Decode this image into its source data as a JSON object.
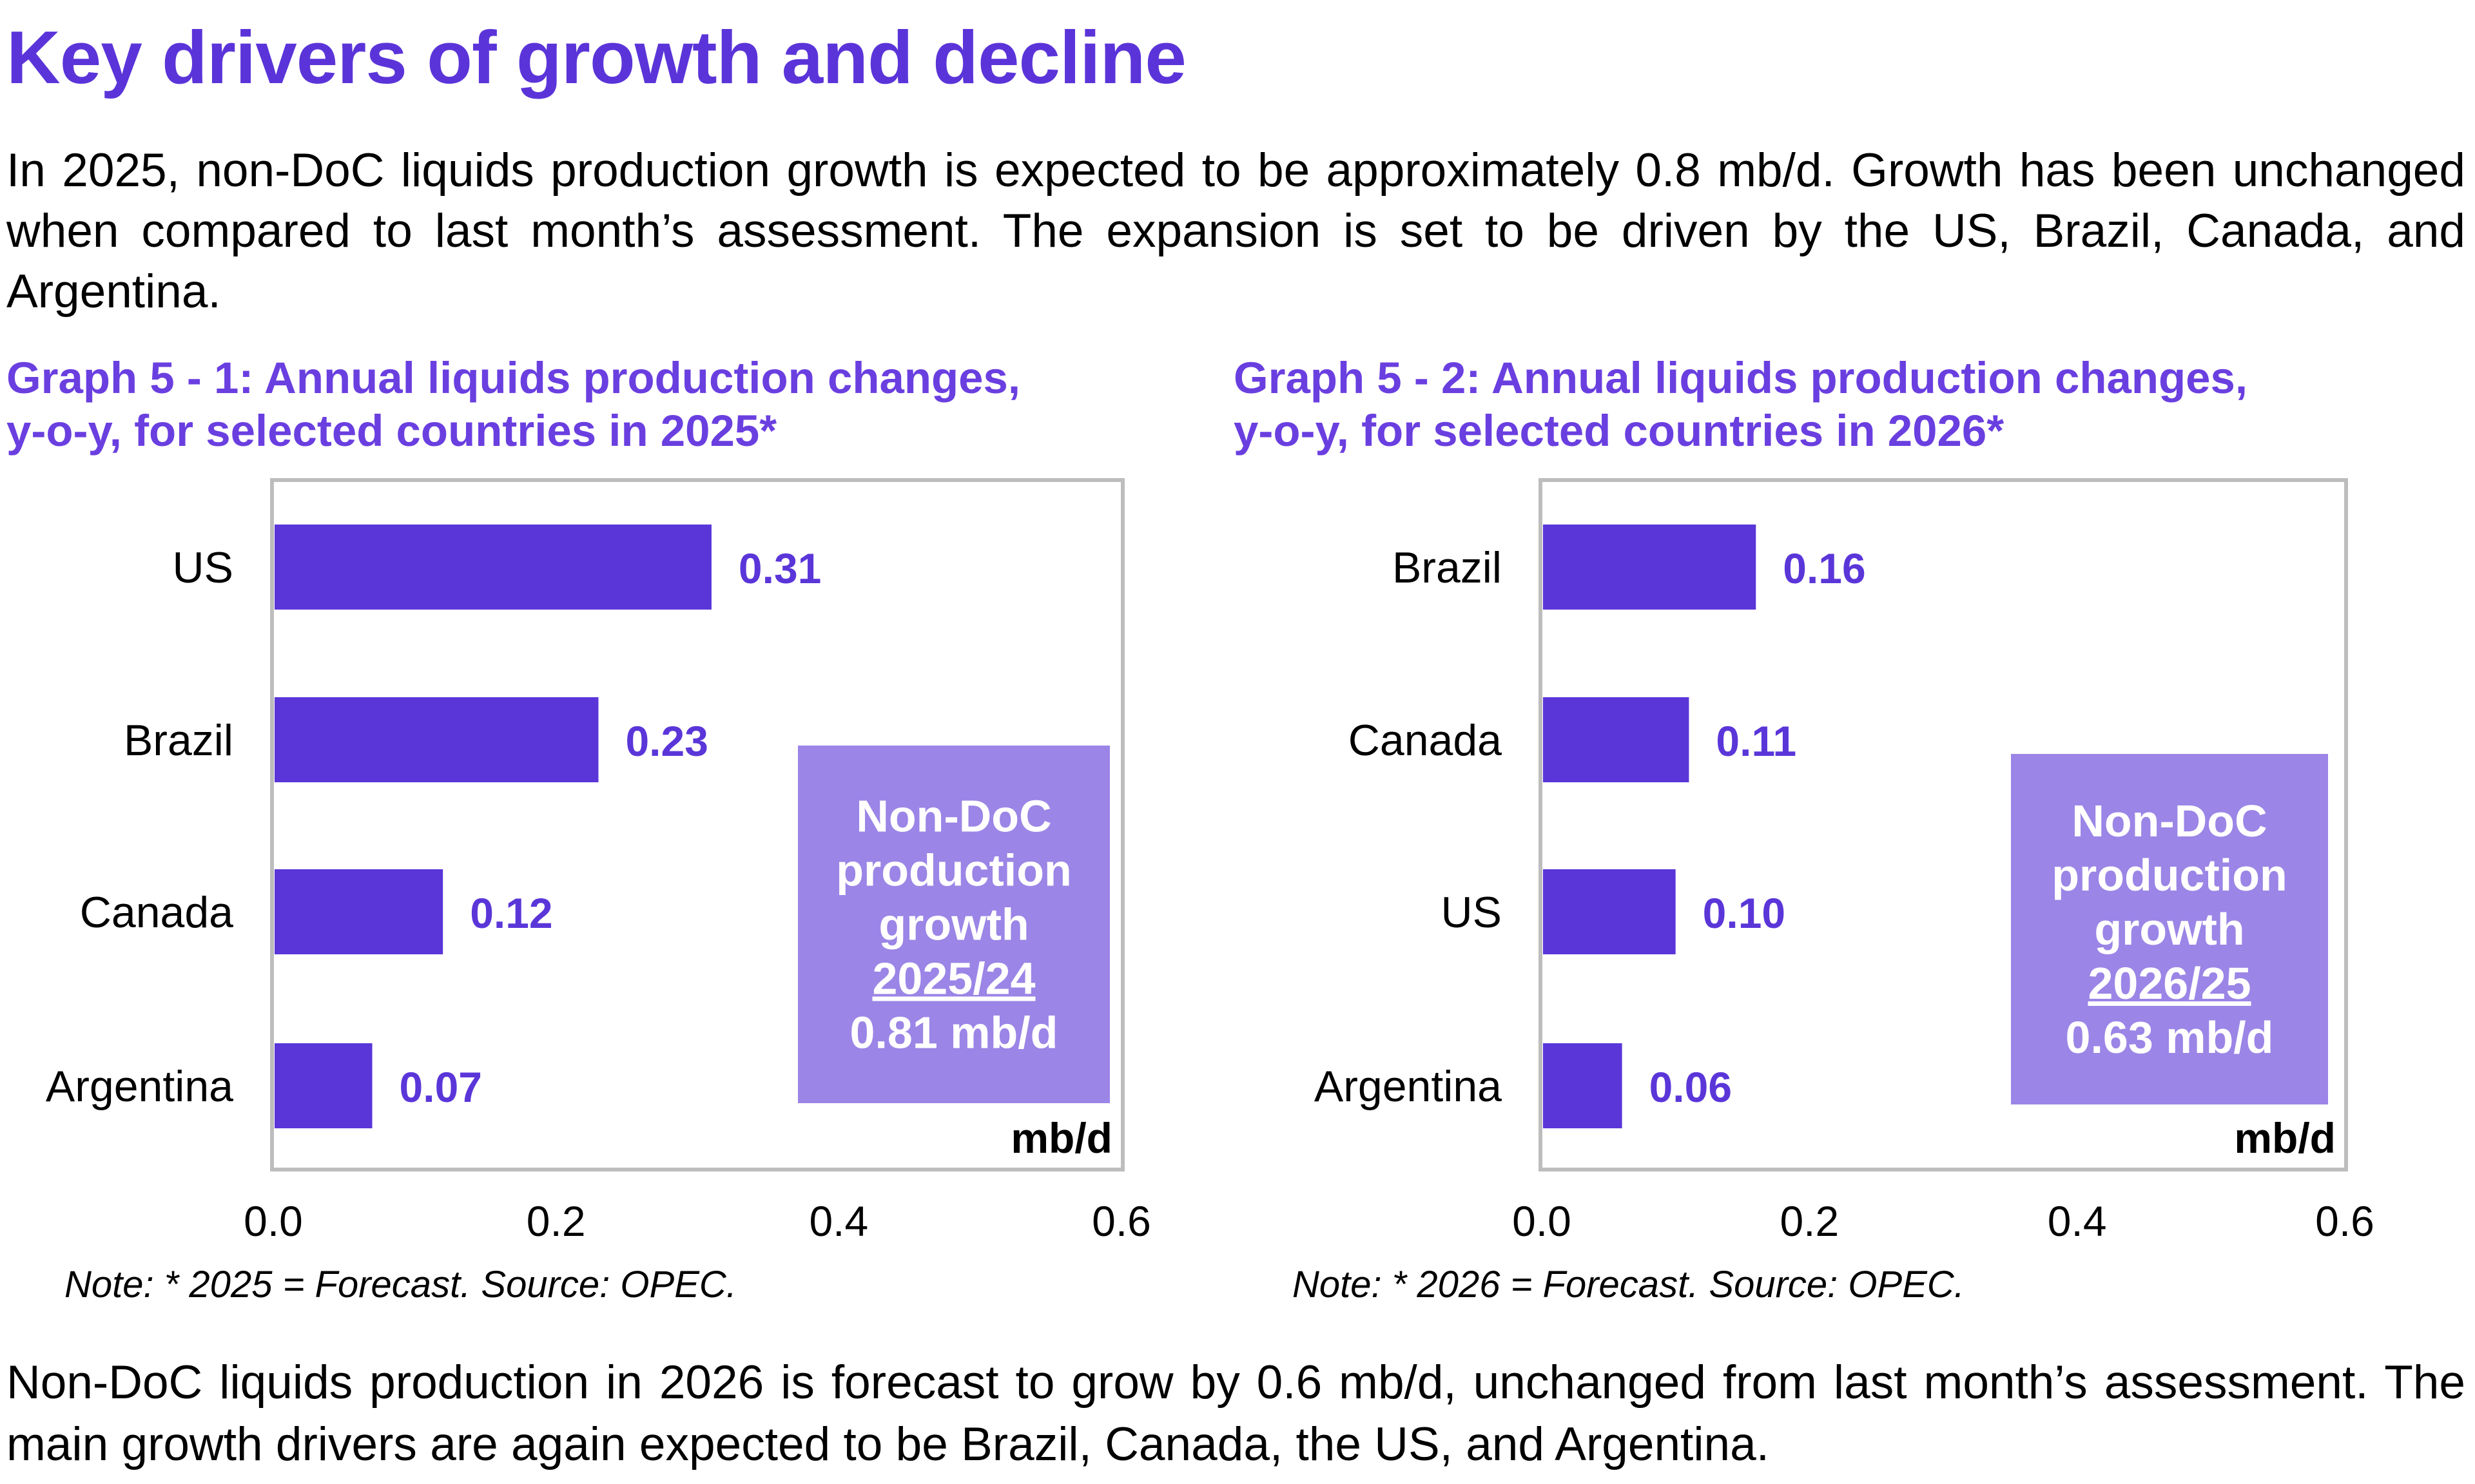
{
  "page": {
    "title": "Key drivers of growth and decline",
    "paragraph_top": "In 2025, non-DoC liquids production growth is expected to be approximately 0.8 mb/d. Growth has been unchanged when compared to last month’s assessment. The expansion is set to be driven by the US, Brazil, Canada, and Argentina.",
    "paragraph_bottom": "Non-DoC liquids production in 2026 is forecast to grow by 0.6 mb/d, unchanged from last month’s assessment. The main growth drivers are again expected to be Brazil, Canada, the US, and Argentina.",
    "colors": {
      "title": "#5b34d9",
      "bar": "#5a36d9",
      "annotation_box": "#9b85e6",
      "frame": "#bdbdbd"
    }
  },
  "chart_data": [
    {
      "type": "bar",
      "orientation": "horizontal",
      "title_lines": [
        "Graph 5 - 1: Annual liquids production changes,",
        "y-o-y, for selected countries in 2025*"
      ],
      "categories": [
        "US",
        "Brazil",
        "Canada",
        "Argentina"
      ],
      "values": [
        0.31,
        0.23,
        0.12,
        0.07
      ],
      "value_labels": [
        "0.31",
        "0.23",
        "0.12",
        "0.07"
      ],
      "xlim": [
        0,
        0.6
      ],
      "xticks": [
        "0.0",
        "0.2",
        "0.4",
        "0.6"
      ],
      "unit_label": "mb/d",
      "xlabel": "",
      "ylabel": "",
      "grid": false,
      "annotation": {
        "lines": [
          "Non-DoC",
          "production",
          "growth",
          "2025/24",
          "0.81 mb/d"
        ],
        "underlined_line": 3,
        "placement": "bottom-right"
      },
      "note": "Note: * 2025 = Forecast. Source: OPEC."
    },
    {
      "type": "bar",
      "orientation": "horizontal",
      "title_lines": [
        "Graph 5 - 2: Annual liquids production changes,",
        "y-o-y, for selected countries in 2026*"
      ],
      "categories": [
        "Brazil",
        "Canada",
        "US",
        "Argentina"
      ],
      "values": [
        0.16,
        0.11,
        0.1,
        0.06
      ],
      "value_labels": [
        "0.16",
        "0.11",
        "0.10",
        "0.06"
      ],
      "xlim": [
        0,
        0.6
      ],
      "xticks": [
        "0.0",
        "0.2",
        "0.4",
        "0.6"
      ],
      "unit_label": "mb/d",
      "xlabel": "",
      "ylabel": "",
      "grid": false,
      "annotation": {
        "lines": [
          "Non-DoC",
          "production",
          "growth",
          "2026/25",
          "0.63 mb/d"
        ],
        "underlined_line": 3,
        "placement": "bottom-right"
      },
      "note": "Note: * 2026 = Forecast. Source: OPEC."
    }
  ]
}
